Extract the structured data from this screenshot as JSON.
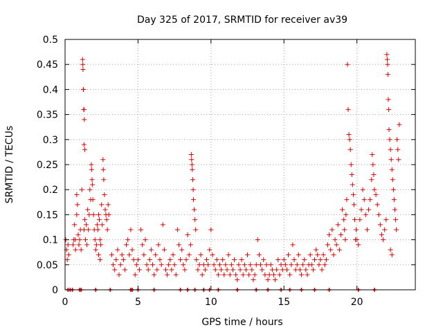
{
  "chart_data": {
    "type": "scatter",
    "title": "Day 325 of 2017, SRMTID for receiver av39",
    "xlabel": "GPS time / hours",
    "ylabel": "SRMTID / TECUs",
    "xlim": [
      0,
      24
    ],
    "ylim": [
      0,
      0.5
    ],
    "x_ticks": [
      0,
      5,
      10,
      15,
      20
    ],
    "y_ticks": [
      0,
      0.05,
      0.1,
      0.15,
      0.2,
      0.25,
      0.3,
      0.35,
      0.4,
      0.45,
      0.5
    ],
    "y_tick_labels": [
      "0",
      "0.05",
      "0.1",
      "0.15",
      "0.2",
      "0.25",
      "0.3",
      "0.35",
      "0.4",
      "0.45",
      "0.5"
    ],
    "grid": true,
    "marker": "+",
    "colors": {
      "series": "#dd0000",
      "grid": "#a0a0a0",
      "axis": "#000000"
    },
    "series": [
      {
        "name": "SRMTID",
        "points": [
          [
            0.05,
            0.1
          ],
          [
            0.1,
            0.08
          ],
          [
            0.15,
            0.06
          ],
          [
            0.2,
            0.09
          ],
          [
            0.25,
            0.07
          ],
          [
            0.55,
            0.09
          ],
          [
            0.6,
            0.1
          ],
          [
            0.65,
            0.13
          ],
          [
            0.7,
            0.1
          ],
          [
            0.72,
            0.08
          ],
          [
            0.8,
            0.19
          ],
          [
            0.8,
            0.15
          ],
          [
            0.85,
            0.17
          ],
          [
            0.9,
            0.11
          ],
          [
            0.95,
            0.09
          ],
          [
            1.0,
            0.1
          ],
          [
            1.05,
            0.12
          ],
          [
            1.1,
            0.08
          ],
          [
            1.15,
            0.2
          ],
          [
            1.2,
            0.46
          ],
          [
            1.22,
            0.45
          ],
          [
            1.23,
            0.44
          ],
          [
            1.25,
            0.4
          ],
          [
            1.26,
            0.4
          ],
          [
            1.28,
            0.36
          ],
          [
            1.3,
            0.36
          ],
          [
            1.32,
            0.34
          ],
          [
            1.3,
            0.29
          ],
          [
            1.35,
            0.28
          ],
          [
            1.3,
            0.12
          ],
          [
            1.35,
            0.14
          ],
          [
            1.4,
            0.1
          ],
          [
            1.45,
            0.13
          ],
          [
            1.5,
            0.09
          ],
          [
            1.55,
            0.16
          ],
          [
            1.6,
            0.12
          ],
          [
            1.65,
            0.15
          ],
          [
            1.7,
            0.2
          ],
          [
            1.75,
            0.18
          ],
          [
            1.8,
            0.25
          ],
          [
            1.82,
            0.24
          ],
          [
            1.85,
            0.22
          ],
          [
            1.88,
            0.21
          ],
          [
            1.9,
            0.18
          ],
          [
            1.95,
            0.15
          ],
          [
            2.0,
            0.12
          ],
          [
            2.05,
            0.1
          ],
          [
            2.1,
            0.08
          ],
          [
            2.15,
            0.09
          ],
          [
            2.2,
            0.13
          ],
          [
            2.25,
            0.12
          ],
          [
            2.3,
            0.15
          ],
          [
            2.35,
            0.14
          ],
          [
            2.4,
            0.1
          ],
          [
            2.45,
            0.09
          ],
          [
            2.5,
            0.17
          ],
          [
            2.55,
            0.13
          ],
          [
            2.6,
            0.26
          ],
          [
            2.62,
            0.24
          ],
          [
            2.65,
            0.22
          ],
          [
            2.7,
            0.19
          ],
          [
            2.75,
            0.16
          ],
          [
            2.8,
            0.15
          ],
          [
            2.85,
            0.14
          ],
          [
            2.9,
            0.12
          ],
          [
            2.95,
            0.17
          ],
          [
            3.0,
            0.15
          ],
          [
            2.3,
            0.07
          ],
          [
            2.4,
            0.06
          ],
          [
            3.2,
            0.07
          ],
          [
            3.3,
            0.05
          ],
          [
            3.4,
            0.04
          ],
          [
            3.5,
            0.06
          ],
          [
            3.6,
            0.08
          ],
          [
            3.7,
            0.03
          ],
          [
            3.8,
            0.05
          ],
          [
            3.9,
            0.07
          ],
          [
            4.0,
            0.06
          ],
          [
            4.1,
            0.04
          ],
          [
            4.2,
            0.09
          ],
          [
            4.3,
            0.1
          ],
          [
            4.4,
            0.07
          ],
          [
            4.5,
            0.12
          ],
          [
            4.6,
            0.08
          ],
          [
            4.7,
            0.06
          ],
          [
            4.8,
            0.03
          ],
          [
            4.9,
            0.05
          ],
          [
            5.0,
            0.06
          ],
          [
            5.1,
            0.04
          ],
          [
            5.2,
            0.12
          ],
          [
            5.3,
            0.09
          ],
          [
            5.4,
            0.07
          ],
          [
            5.5,
            0.1
          ],
          [
            5.6,
            0.05
          ],
          [
            5.7,
            0.04
          ],
          [
            5.8,
            0.06
          ],
          [
            5.9,
            0.08
          ],
          [
            6.0,
            0.05
          ],
          [
            6.1,
            0.03
          ],
          [
            6.2,
            0.07
          ],
          [
            6.3,
            0.04
          ],
          [
            6.4,
            0.09
          ],
          [
            6.5,
            0.06
          ],
          [
            6.6,
            0.05
          ],
          [
            6.7,
            0.13
          ],
          [
            6.8,
            0.08
          ],
          [
            6.9,
            0.04
          ],
          [
            7.0,
            0.03
          ],
          [
            7.1,
            0.05
          ],
          [
            7.2,
            0.06
          ],
          [
            7.3,
            0.04
          ],
          [
            7.4,
            0.07
          ],
          [
            7.5,
            0.05
          ],
          [
            7.6,
            0.03
          ],
          [
            7.7,
            0.12
          ],
          [
            7.8,
            0.09
          ],
          [
            7.9,
            0.06
          ],
          [
            8.0,
            0.08
          ],
          [
            8.1,
            0.05
          ],
          [
            8.2,
            0.04
          ],
          [
            8.3,
            0.06
          ],
          [
            8.4,
            0.11
          ],
          [
            8.5,
            0.07
          ],
          [
            8.6,
            0.09
          ],
          [
            8.65,
            0.27
          ],
          [
            8.67,
            0.26
          ],
          [
            8.7,
            0.25
          ],
          [
            8.72,
            0.24
          ],
          [
            8.75,
            0.22
          ],
          [
            8.78,
            0.2
          ],
          [
            8.8,
            0.18
          ],
          [
            8.85,
            0.16
          ],
          [
            8.9,
            0.14
          ],
          [
            8.95,
            0.12
          ],
          [
            9.0,
            0.06
          ],
          [
            9.1,
            0.04
          ],
          [
            9.2,
            0.05
          ],
          [
            9.3,
            0.07
          ],
          [
            9.4,
            0.03
          ],
          [
            9.5,
            0.05
          ],
          [
            9.6,
            0.04
          ],
          [
            9.7,
            0.06
          ],
          [
            9.8,
            0.05
          ],
          [
            9.9,
            0.08
          ],
          [
            10.0,
            0.12
          ],
          [
            10.1,
            0.07
          ],
          [
            10.2,
            0.05
          ],
          [
            10.3,
            0.04
          ],
          [
            10.4,
            0.06
          ],
          [
            10.5,
            0.03
          ],
          [
            10.6,
            0.05
          ],
          [
            10.7,
            0.04
          ],
          [
            10.8,
            0.06
          ],
          [
            10.9,
            0.03
          ],
          [
            11.0,
            0.05
          ],
          [
            11.1,
            0.04
          ],
          [
            11.2,
            0.07
          ],
          [
            11.3,
            0.03
          ],
          [
            11.4,
            0.05
          ],
          [
            11.5,
            0.04
          ],
          [
            11.6,
            0.06
          ],
          [
            11.7,
            0.03
          ],
          [
            11.8,
            0.02
          ],
          [
            11.9,
            0.05
          ],
          [
            12.0,
            0.04
          ],
          [
            12.1,
            0.06
          ],
          [
            12.2,
            0.03
          ],
          [
            12.3,
            0.05
          ],
          [
            12.4,
            0.04
          ],
          [
            12.5,
            0.07
          ],
          [
            12.6,
            0.03
          ],
          [
            12.7,
            0.05
          ],
          [
            12.8,
            0.04
          ],
          [
            12.9,
            0.02
          ],
          [
            13.0,
            0.03
          ],
          [
            13.1,
            0.05
          ],
          [
            13.2,
            0.1
          ],
          [
            13.3,
            0.07
          ],
          [
            13.4,
            0.05
          ],
          [
            13.5,
            0.04
          ],
          [
            13.6,
            0.06
          ],
          [
            13.7,
            0.03
          ],
          [
            13.8,
            0.05
          ],
          [
            13.9,
            0.02
          ],
          [
            14.0,
            0.03
          ],
          [
            14.1,
            0.05
          ],
          [
            14.2,
            0.04
          ],
          [
            14.3,
            0.03
          ],
          [
            14.4,
            0.02
          ],
          [
            14.5,
            0.04
          ],
          [
            14.6,
            0.06
          ],
          [
            14.7,
            0.03
          ],
          [
            14.8,
            0.05
          ],
          [
            14.9,
            0.04
          ],
          [
            15.0,
            0.06
          ],
          [
            15.1,
            0.05
          ],
          [
            15.2,
            0.04
          ],
          [
            15.3,
            0.07
          ],
          [
            15.4,
            0.03
          ],
          [
            15.5,
            0.05
          ],
          [
            15.6,
            0.09
          ],
          [
            15.7,
            0.06
          ],
          [
            15.8,
            0.04
          ],
          [
            15.9,
            0.05
          ],
          [
            16.0,
            0.07
          ],
          [
            16.1,
            0.04
          ],
          [
            16.2,
            0.03
          ],
          [
            16.3,
            0.05
          ],
          [
            16.4,
            0.06
          ],
          [
            16.5,
            0.04
          ],
          [
            16.6,
            0.03
          ],
          [
            16.7,
            0.05
          ],
          [
            16.8,
            0.07
          ],
          [
            16.9,
            0.05
          ],
          [
            17.0,
            0.04
          ],
          [
            17.1,
            0.06
          ],
          [
            17.2,
            0.08
          ],
          [
            17.3,
            0.07
          ],
          [
            17.4,
            0.05
          ],
          [
            17.5,
            0.06
          ],
          [
            17.6,
            0.04
          ],
          [
            17.7,
            0.07
          ],
          [
            17.8,
            0.05
          ],
          [
            17.9,
            0.06
          ],
          [
            18.0,
            0.09
          ],
          [
            18.1,
            0.11
          ],
          [
            18.2,
            0.08
          ],
          [
            18.3,
            0.12
          ],
          [
            18.4,
            0.07
          ],
          [
            18.5,
            0.1
          ],
          [
            18.6,
            0.09
          ],
          [
            18.7,
            0.13
          ],
          [
            18.8,
            0.08
          ],
          [
            18.9,
            0.11
          ],
          [
            19.0,
            0.16
          ],
          [
            19.1,
            0.14
          ],
          [
            19.15,
            0.12
          ],
          [
            19.2,
            0.1
          ],
          [
            19.25,
            0.15
          ],
          [
            19.3,
            0.18
          ],
          [
            19.35,
            0.45
          ],
          [
            19.4,
            0.36
          ],
          [
            19.45,
            0.31
          ],
          [
            19.5,
            0.3
          ],
          [
            19.55,
            0.28
          ],
          [
            19.6,
            0.25
          ],
          [
            19.65,
            0.23
          ],
          [
            19.7,
            0.21
          ],
          [
            19.75,
            0.19
          ],
          [
            19.8,
            0.17
          ],
          [
            19.85,
            0.14
          ],
          [
            19.9,
            0.1
          ],
          [
            19.95,
            0.12
          ],
          [
            20.0,
            0.1
          ],
          [
            20.1,
            0.09
          ],
          [
            20.2,
            0.14
          ],
          [
            20.3,
            0.16
          ],
          [
            20.4,
            0.2
          ],
          [
            20.5,
            0.18
          ],
          [
            20.6,
            0.15
          ],
          [
            20.7,
            0.12
          ],
          [
            20.8,
            0.16
          ],
          [
            20.9,
            0.18
          ],
          [
            21.0,
            0.22
          ],
          [
            21.05,
            0.27
          ],
          [
            21.1,
            0.25
          ],
          [
            21.15,
            0.23
          ],
          [
            21.2,
            0.2
          ],
          [
            21.3,
            0.19
          ],
          [
            21.4,
            0.17
          ],
          [
            21.5,
            0.15
          ],
          [
            21.6,
            0.13
          ],
          [
            21.7,
            0.11
          ],
          [
            21.8,
            0.1
          ],
          [
            21.9,
            0.12
          ],
          [
            22.0,
            0.14
          ],
          [
            22.05,
            0.47
          ],
          [
            22.08,
            0.46
          ],
          [
            22.1,
            0.45
          ],
          [
            22.12,
            0.43
          ],
          [
            22.15,
            0.38
          ],
          [
            22.18,
            0.36
          ],
          [
            22.2,
            0.32
          ],
          [
            22.25,
            0.3
          ],
          [
            22.3,
            0.28
          ],
          [
            22.35,
            0.26
          ],
          [
            22.4,
            0.24
          ],
          [
            22.45,
            0.22
          ],
          [
            22.5,
            0.2
          ],
          [
            22.55,
            0.18
          ],
          [
            22.6,
            0.16
          ],
          [
            22.65,
            0.14
          ],
          [
            22.7,
            0.12
          ],
          [
            22.75,
            0.3
          ],
          [
            22.8,
            0.28
          ],
          [
            22.85,
            0.26
          ],
          [
            22.9,
            0.33
          ],
          [
            22.3,
            0.08
          ],
          [
            22.4,
            0.07
          ]
        ]
      }
    ],
    "zero_markers": [
      0.2,
      0.35,
      0.5,
      1.0,
      1.1,
      2.1,
      3.1,
      4.5,
      4.6,
      5.0,
      6.1,
      7.9,
      8.4,
      8.9,
      9.5,
      9.9,
      10.5,
      11.8,
      13.1,
      13.9,
      14.8,
      15.4,
      16.2,
      17.1,
      18.1,
      20.1,
      21.2
    ]
  }
}
